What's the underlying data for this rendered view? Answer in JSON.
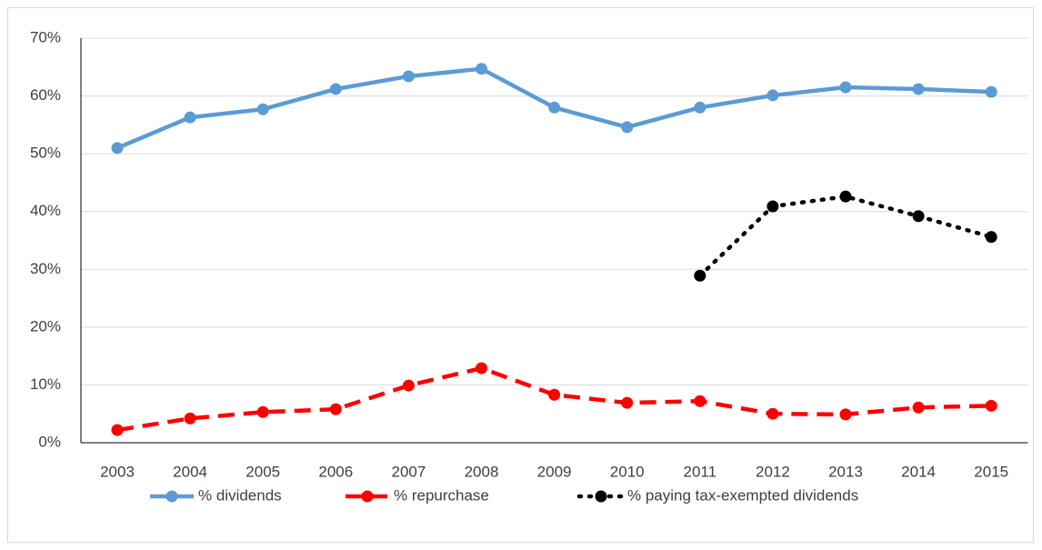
{
  "chart_data": {
    "type": "line",
    "categories": [
      "2003",
      "2004",
      "2005",
      "2006",
      "2007",
      "2008",
      "2009",
      "2010",
      "2011",
      "2012",
      "2013",
      "2014",
      "2015"
    ],
    "series": [
      {
        "name": "% dividends",
        "color": "#5b9bd5",
        "style": "solid",
        "values": [
          51.0,
          56.3,
          57.7,
          61.2,
          63.4,
          64.7,
          58.0,
          54.6,
          58.0,
          60.1,
          61.5,
          61.2,
          60.7
        ]
      },
      {
        "name": "% repurchase",
        "color": "#ff0000",
        "style": "dashed",
        "values": [
          2.2,
          4.2,
          5.3,
          5.8,
          9.9,
          12.9,
          8.3,
          6.9,
          7.2,
          5.0,
          4.9,
          6.1,
          6.4
        ]
      },
      {
        "name": "% paying tax-exempted dividends",
        "color": "#000000",
        "style": "dotted",
        "values": [
          null,
          null,
          null,
          null,
          null,
          null,
          null,
          null,
          28.9,
          40.9,
          42.6,
          39.2,
          35.6
        ]
      }
    ],
    "ylim": [
      0,
      70
    ],
    "yticks": [
      {
        "value": 0,
        "label": "0%"
      },
      {
        "value": 10,
        "label": "10%"
      },
      {
        "value": 20,
        "label": "20%"
      },
      {
        "value": 30,
        "label": "30%"
      },
      {
        "value": 40,
        "label": "40%"
      },
      {
        "value": 50,
        "label": "50%"
      },
      {
        "value": 60,
        "label": "60%"
      },
      {
        "value": 70,
        "label": "70%"
      }
    ],
    "grid": true,
    "legend": "bottom"
  }
}
